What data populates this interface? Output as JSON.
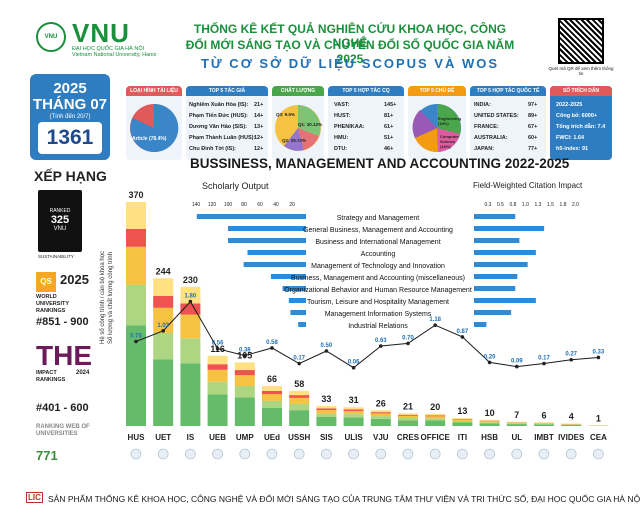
{
  "header": {
    "brand": "VNU",
    "brand_sub": "ĐẠI HỌC QUỐC GIA HÀ NỘI",
    "brand_sub2": "Vietnam National University, Hanoi",
    "title_line1": "THỐNG KÊ KẾT QUẢ NGHIÊN CỨU KHOA HỌC, CÔNG NGHỆ",
    "title_line2": "ĐỔI MỚI SÁNG TẠO VÀ CHUYỂN ĐỔI SỐ QUỐC GIA NĂM 2025",
    "title_line3": "TỪ CƠ SỞ DỮ LIỆU SCOPUS VÀ WOS",
    "qr_caption": "Quét mã QR để xem thêm thông tin"
  },
  "date_box": {
    "year": "2025",
    "month": "THÁNG 07",
    "updated": "(Tính đến 20/7)",
    "total": "1361"
  },
  "ranking": {
    "heading": "XẾP HẠNG",
    "impact_label": "RANKED",
    "impact_value": "325",
    "impact_vnu": "VNU",
    "impact_caption": "SUSTAINABILITY",
    "qs_badge": "QS",
    "qs_year": "2025",
    "qs_title": "WORLD UNIVERSITY RANKINGS",
    "qs_rank": "#851 - 900",
    "the_logo": "THE",
    "the_title": "IMPACT RANKINGS",
    "the_year": "2024",
    "the_rank": "#401 - 600",
    "web_title": "RANKING WEB OF UNIVERSITIES",
    "web_rank": "771"
  },
  "cards": {
    "doc_types": {
      "header": "LOẠI HÌNH TÀI LIỆU",
      "slice_label": "Article (78.4%)",
      "article_pct": 78.4,
      "color": "#3a86c8"
    },
    "top_authors": {
      "header": "TOP 5 TÁC GIẢ",
      "rows": [
        {
          "name": "Nghiêm Xuân Hòa (IS):",
          "value": "21+"
        },
        {
          "name": "Phạm Tiến Đức (HUS):",
          "value": "14+"
        },
        {
          "name": "Dương Văn Hảo (SIS):",
          "value": "13+"
        },
        {
          "name": "Phạm Thành Luân (HUS):",
          "value": "12+"
        },
        {
          "name": "Chu Đình Tới (IS):",
          "value": "12+"
        }
      ]
    },
    "quality": {
      "header": "CHẤT LƯỢNG",
      "labels": [
        "Q1: 30.12%",
        "Q2: 25.72%",
        "Q3: 9.5%"
      ],
      "colors": [
        "#7cc576",
        "#f5c242",
        "#e57373",
        "#9575cd"
      ]
    },
    "top_orgs": {
      "header": "TOP 5 HỢP TÁC CQ",
      "rows": [
        {
          "name": "VAST:",
          "value": "145+"
        },
        {
          "name": "HUST:",
          "value": "81+"
        },
        {
          "name": "PHENIKAA:",
          "value": "61+"
        },
        {
          "name": "HMU:",
          "value": "51+"
        },
        {
          "name": "DTU:",
          "value": "46+"
        }
      ]
    },
    "topics": {
      "header": "TOP 5 CHỦ ĐỀ",
      "labels": [
        "Engineering (19%)",
        "Computer Science (16%)"
      ],
      "colors": [
        "#4aa64a",
        "#e05a9e",
        "#f39c12",
        "#3a86c8",
        "#9b59b6"
      ]
    },
    "top_countries": {
      "header": "TOP 5 HỢP TÁC QUỐC TẾ",
      "rows": [
        {
          "name": "INDIA:",
          "value": "97+"
        },
        {
          "name": "UNITED STATES:",
          "value": "89+"
        },
        {
          "name": "FRANCE:",
          "value": "67+"
        },
        {
          "name": "AUSTRALIA:",
          "value": "60+"
        },
        {
          "name": "JAPAN:",
          "value": "77+"
        }
      ]
    },
    "citations": {
      "header": "SỐ TRÍCH DẪN",
      "rows": [
        "2022-2025",
        "Công bố: 6000+",
        "Tổng trích dẫn: 7.4",
        "FWCI: 1.64",
        "h5-index: 91"
      ]
    }
  },
  "chart_data": {
    "type": "bar",
    "title": "BUSSINESS, MANAGEMENT AND ACCOUNTING 2022-2025",
    "scholarly_output_label": "Scholarly Output",
    "fwci_label": "Field-Weighted Citation Impact",
    "yaxis_label": "Hệ số công trình / cán bộ khoa học",
    "yaxis_label2": "Số lượng và chất lượng công trình",
    "categories": [
      "HUS",
      "UET",
      "IS",
      "UEB",
      "UMP",
      "UEd",
      "USSH",
      "SIS",
      "ULIS",
      "VJU",
      "CRES",
      "OFFICE",
      "ITI",
      "HSB",
      "UL",
      "IMBT",
      "IVIDES",
      "CEA"
    ],
    "values": [
      370,
      244,
      230,
      116,
      105,
      66,
      58,
      33,
      31,
      26,
      21,
      20,
      13,
      10,
      7,
      6,
      4,
      1
    ],
    "ratio_values": [
      0.75,
      1.03,
      1.8,
      0.56,
      0.38,
      0.58,
      0.17,
      0.5,
      0.06,
      0.63,
      0.7,
      1.18,
      0.87,
      0.2,
      0.09,
      0.17,
      0.27,
      0.33
    ],
    "ratio_labels": [
      "0.75",
      "1.03",
      "1.80",
      "0.56",
      "0.38",
      "0.58",
      "0.17",
      "0.50",
      "0.06",
      "0.63",
      "0.70",
      "1.18",
      "0.87",
      "0.20",
      "0.09",
      "0.17",
      "0.27",
      "0.33"
    ],
    "segment_colors": [
      "#66bb6a",
      "#aed581",
      "#f5c242",
      "#ef5350",
      "#ffe082"
    ],
    "subjects": [
      {
        "name": "Strategy and Management",
        "output": 140,
        "fwci": 1.0
      },
      {
        "name": "General Business, Management and Accounting",
        "output": 100,
        "fwci": 1.7
      },
      {
        "name": "Business and International Management",
        "output": 100,
        "fwci": 1.1
      },
      {
        "name": "Accounting",
        "output": 75,
        "fwci": 1.5
      },
      {
        "name": "Management of Technology and Innovation",
        "output": 80,
        "fwci": 1.3
      },
      {
        "name": "Business, Management and Accounting (miscellaneous)",
        "output": 45,
        "fwci": 1.05
      },
      {
        "name": "Organizational Behavior and Human Resource Management",
        "output": 30,
        "fwci": 1.0
      },
      {
        "name": "Tourism, Leisure and Hospitality Management",
        "output": 22,
        "fwci": 1.5
      },
      {
        "name": "Management Information Systems",
        "output": 20,
        "fwci": 0.9
      },
      {
        "name": "Industrial Relations",
        "output": 10,
        "fwci": 0.3
      }
    ],
    "so_ticks": [
      "140",
      "120",
      "100",
      "80",
      "60",
      "40",
      "20"
    ],
    "fwci_ticks": [
      "0.3",
      "0.5",
      "0.8",
      "1.0",
      "1.3",
      "1.5",
      "1.8",
      "2.0"
    ],
    "bar_color": "#2e8bd8",
    "line_color": "#1a1a1a"
  },
  "footer": {
    "mark": "LIC",
    "text": "SẢN PHẨM THỐNG KÊ KHOA HỌC, CÔNG NGHỆ VÀ ĐỔI MỚI SÁNG TẠO CỦA TRUNG TÂM THƯ VIỆN VÀ TRI THỨC SỐ, ĐẠI HỌC QUỐC GIA HÀ NỘI"
  }
}
